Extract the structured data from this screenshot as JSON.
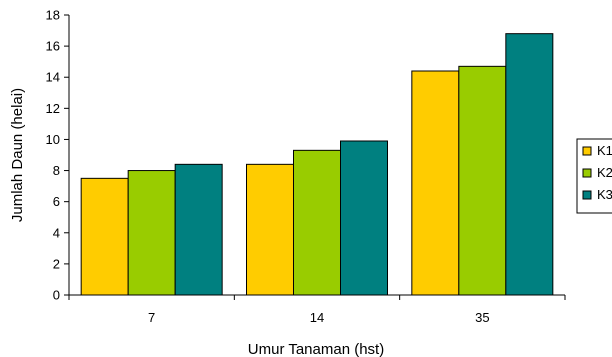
{
  "chart_data": {
    "type": "bar",
    "title": "",
    "xlabel": "Umur Tanaman (hst)",
    "ylabel": "Jumlah Daun (helai)",
    "categories": [
      "7",
      "14",
      "35"
    ],
    "series": [
      {
        "name": "K1",
        "values": [
          7.5,
          8.4,
          14.4
        ],
        "color": "#FFCC00"
      },
      {
        "name": "K2",
        "values": [
          8.0,
          9.3,
          14.7
        ],
        "color": "#99CC00"
      },
      {
        "name": "K3",
        "values": [
          8.4,
          9.9,
          16.8
        ],
        "color": "#008080"
      }
    ],
    "ylim": [
      0,
      18
    ],
    "yticks": [
      0,
      2,
      4,
      6,
      8,
      10,
      12,
      14,
      16,
      18
    ],
    "yticklabels": [
      "0",
      "2",
      "4",
      "6",
      "8",
      "10",
      "12",
      "14",
      "16",
      "18"
    ],
    "grid": false,
    "legend": "right"
  }
}
